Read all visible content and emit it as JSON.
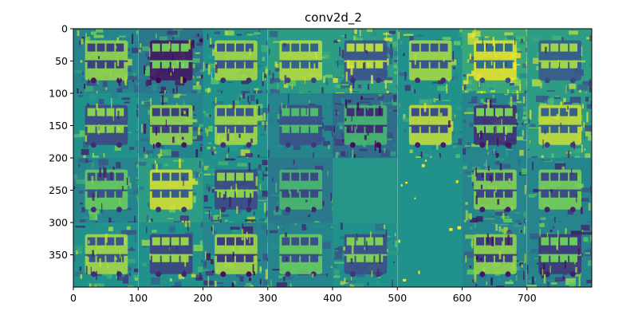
{
  "chart_data": {
    "type": "heatmap",
    "title": "conv2d_2",
    "colormap": "viridis",
    "xlim": [
      0,
      800
    ],
    "ylim": [
      400,
      0
    ],
    "y_inverted": true,
    "grid": false,
    "x_ticks": [
      0,
      100,
      200,
      300,
      400,
      500,
      600,
      700
    ],
    "y_ticks": [
      0,
      50,
      100,
      150,
      200,
      250,
      300,
      350
    ],
    "tile_grid": {
      "rows": 4,
      "cols": 8,
      "tile_size": 100
    },
    "tiles": [
      {
        "row": 0,
        "col": 0,
        "mean": 0.45,
        "contrast": 0.85,
        "detail": "high"
      },
      {
        "row": 0,
        "col": 1,
        "mean": 0.4,
        "contrast": 0.95,
        "detail": "high"
      },
      {
        "row": 0,
        "col": 2,
        "mean": 0.5,
        "contrast": 0.8,
        "detail": "high"
      },
      {
        "row": 0,
        "col": 3,
        "mean": 0.55,
        "contrast": 0.75,
        "detail": "medium"
      },
      {
        "row": 0,
        "col": 4,
        "mean": 0.55,
        "contrast": 0.85,
        "detail": "high"
      },
      {
        "row": 0,
        "col": 5,
        "mean": 0.5,
        "contrast": 0.8,
        "detail": "medium"
      },
      {
        "row": 0,
        "col": 6,
        "mean": 0.6,
        "contrast": 0.8,
        "detail": "high"
      },
      {
        "row": 0,
        "col": 7,
        "mean": 0.55,
        "contrast": 0.75,
        "detail": "medium"
      },
      {
        "row": 1,
        "col": 0,
        "mean": 0.5,
        "contrast": 0.8,
        "detail": "medium"
      },
      {
        "row": 1,
        "col": 1,
        "mean": 0.45,
        "contrast": 0.85,
        "detail": "high"
      },
      {
        "row": 1,
        "col": 2,
        "mean": 0.5,
        "contrast": 0.8,
        "detail": "high"
      },
      {
        "row": 1,
        "col": 3,
        "mean": 0.45,
        "contrast": 0.6,
        "detail": "low"
      },
      {
        "row": 1,
        "col": 4,
        "mean": 0.35,
        "contrast": 0.7,
        "detail": "high"
      },
      {
        "row": 1,
        "col": 5,
        "mean": 0.5,
        "contrast": 0.9,
        "detail": "medium"
      },
      {
        "row": 1,
        "col": 6,
        "mean": 0.45,
        "contrast": 0.85,
        "detail": "high"
      },
      {
        "row": 1,
        "col": 7,
        "mean": 0.55,
        "contrast": 0.8,
        "detail": "high"
      },
      {
        "row": 2,
        "col": 0,
        "mean": 0.45,
        "contrast": 0.7,
        "detail": "high"
      },
      {
        "row": 2,
        "col": 1,
        "mean": 0.55,
        "contrast": 0.85,
        "detail": "medium"
      },
      {
        "row": 2,
        "col": 2,
        "mean": 0.5,
        "contrast": 0.8,
        "detail": "high"
      },
      {
        "row": 2,
        "col": 3,
        "mean": 0.4,
        "contrast": 0.6,
        "detail": "low"
      },
      {
        "row": 2,
        "col": 4,
        "mean": 0.52,
        "contrast": 0.02,
        "detail": "flat"
      },
      {
        "row": 2,
        "col": 5,
        "mean": 0.5,
        "contrast": 0.1,
        "detail": "sparse"
      },
      {
        "row": 2,
        "col": 6,
        "mean": 0.45,
        "contrast": 0.8,
        "detail": "high"
      },
      {
        "row": 2,
        "col": 7,
        "mean": 0.45,
        "contrast": 0.75,
        "detail": "medium"
      },
      {
        "row": 3,
        "col": 0,
        "mean": 0.5,
        "contrast": 0.8,
        "detail": "high"
      },
      {
        "row": 3,
        "col": 1,
        "mean": 0.5,
        "contrast": 0.85,
        "detail": "medium"
      },
      {
        "row": 3,
        "col": 2,
        "mean": 0.45,
        "contrast": 0.9,
        "detail": "high"
      },
      {
        "row": 3,
        "col": 3,
        "mean": 0.45,
        "contrast": 0.7,
        "detail": "medium"
      },
      {
        "row": 3,
        "col": 4,
        "mean": 0.5,
        "contrast": 0.75,
        "detail": "high"
      },
      {
        "row": 3,
        "col": 5,
        "mean": 0.5,
        "contrast": 0.1,
        "detail": "sparse"
      },
      {
        "row": 3,
        "col": 6,
        "mean": 0.45,
        "contrast": 0.85,
        "detail": "high"
      },
      {
        "row": 3,
        "col": 7,
        "mean": 0.45,
        "contrast": 0.8,
        "detail": "high"
      }
    ]
  },
  "colors": {
    "viridis_low": "#440154",
    "viridis_mid": "#21918c",
    "viridis_high": "#fde725",
    "background": "#ffffff",
    "axis": "#000000"
  }
}
